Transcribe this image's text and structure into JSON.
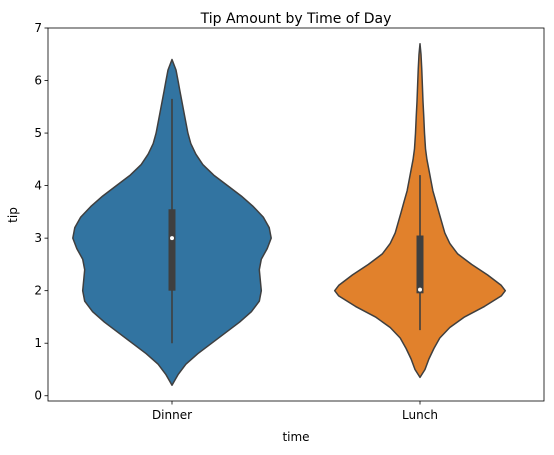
{
  "chart_data": {
    "type": "violin",
    "title": "Tip Amount by Time of Day",
    "xlabel": "time",
    "ylabel": "tip",
    "categories": [
      "Dinner",
      "Lunch"
    ],
    "ylim": [
      -0.1,
      7.0
    ],
    "yticks": [
      "0",
      "1",
      "2",
      "3",
      "4",
      "5",
      "6",
      "7"
    ],
    "grid": false,
    "legend": "none",
    "series": [
      {
        "category": "Dinner",
        "color": "#3274a1",
        "kde_min": 0.2,
        "kde_max": 6.4,
        "whisker_low": 1.0,
        "q1": 2.0,
        "median": 3.0,
        "q3": 3.55,
        "whisker_high": 5.65,
        "density_profile": [
          [
            0.2,
            0.0
          ],
          [
            0.4,
            0.06
          ],
          [
            0.6,
            0.14
          ],
          [
            0.8,
            0.26
          ],
          [
            1.0,
            0.4
          ],
          [
            1.2,
            0.54
          ],
          [
            1.4,
            0.68
          ],
          [
            1.6,
            0.8
          ],
          [
            1.8,
            0.88
          ],
          [
            2.0,
            0.9
          ],
          [
            2.2,
            0.89
          ],
          [
            2.4,
            0.88
          ],
          [
            2.6,
            0.9
          ],
          [
            2.8,
            0.96
          ],
          [
            3.0,
            1.0
          ],
          [
            3.2,
            0.98
          ],
          [
            3.4,
            0.92
          ],
          [
            3.6,
            0.82
          ],
          [
            3.8,
            0.7
          ],
          [
            4.0,
            0.56
          ],
          [
            4.2,
            0.42
          ],
          [
            4.4,
            0.31
          ],
          [
            4.6,
            0.24
          ],
          [
            4.8,
            0.19
          ],
          [
            5.0,
            0.16
          ],
          [
            5.2,
            0.14
          ],
          [
            5.4,
            0.12
          ],
          [
            5.6,
            0.1
          ],
          [
            5.8,
            0.08
          ],
          [
            6.0,
            0.06
          ],
          [
            6.2,
            0.04
          ],
          [
            6.4,
            0.0
          ]
        ]
      },
      {
        "category": "Lunch",
        "color": "#e1812c",
        "kde_min": 0.35,
        "kde_max": 6.7,
        "whisker_low": 1.25,
        "q1": 1.95,
        "median": 2.02,
        "q3": 3.05,
        "whisker_high": 4.2,
        "density_profile": [
          [
            0.35,
            0.0
          ],
          [
            0.5,
            0.05
          ],
          [
            0.7,
            0.09
          ],
          [
            0.9,
            0.14
          ],
          [
            1.1,
            0.2
          ],
          [
            1.3,
            0.3
          ],
          [
            1.5,
            0.45
          ],
          [
            1.7,
            0.65
          ],
          [
            1.9,
            0.82
          ],
          [
            2.0,
            0.86
          ],
          [
            2.1,
            0.82
          ],
          [
            2.3,
            0.68
          ],
          [
            2.5,
            0.52
          ],
          [
            2.7,
            0.38
          ],
          [
            2.9,
            0.3
          ],
          [
            3.1,
            0.25
          ],
          [
            3.3,
            0.22
          ],
          [
            3.5,
            0.19
          ],
          [
            3.7,
            0.16
          ],
          [
            3.9,
            0.13
          ],
          [
            4.1,
            0.11
          ],
          [
            4.3,
            0.09
          ],
          [
            4.5,
            0.07
          ],
          [
            4.7,
            0.055
          ],
          [
            5.0,
            0.045
          ],
          [
            5.3,
            0.038
          ],
          [
            5.6,
            0.03
          ],
          [
            5.9,
            0.024
          ],
          [
            6.2,
            0.018
          ],
          [
            6.5,
            0.01
          ],
          [
            6.7,
            0.0
          ]
        ]
      }
    ]
  }
}
